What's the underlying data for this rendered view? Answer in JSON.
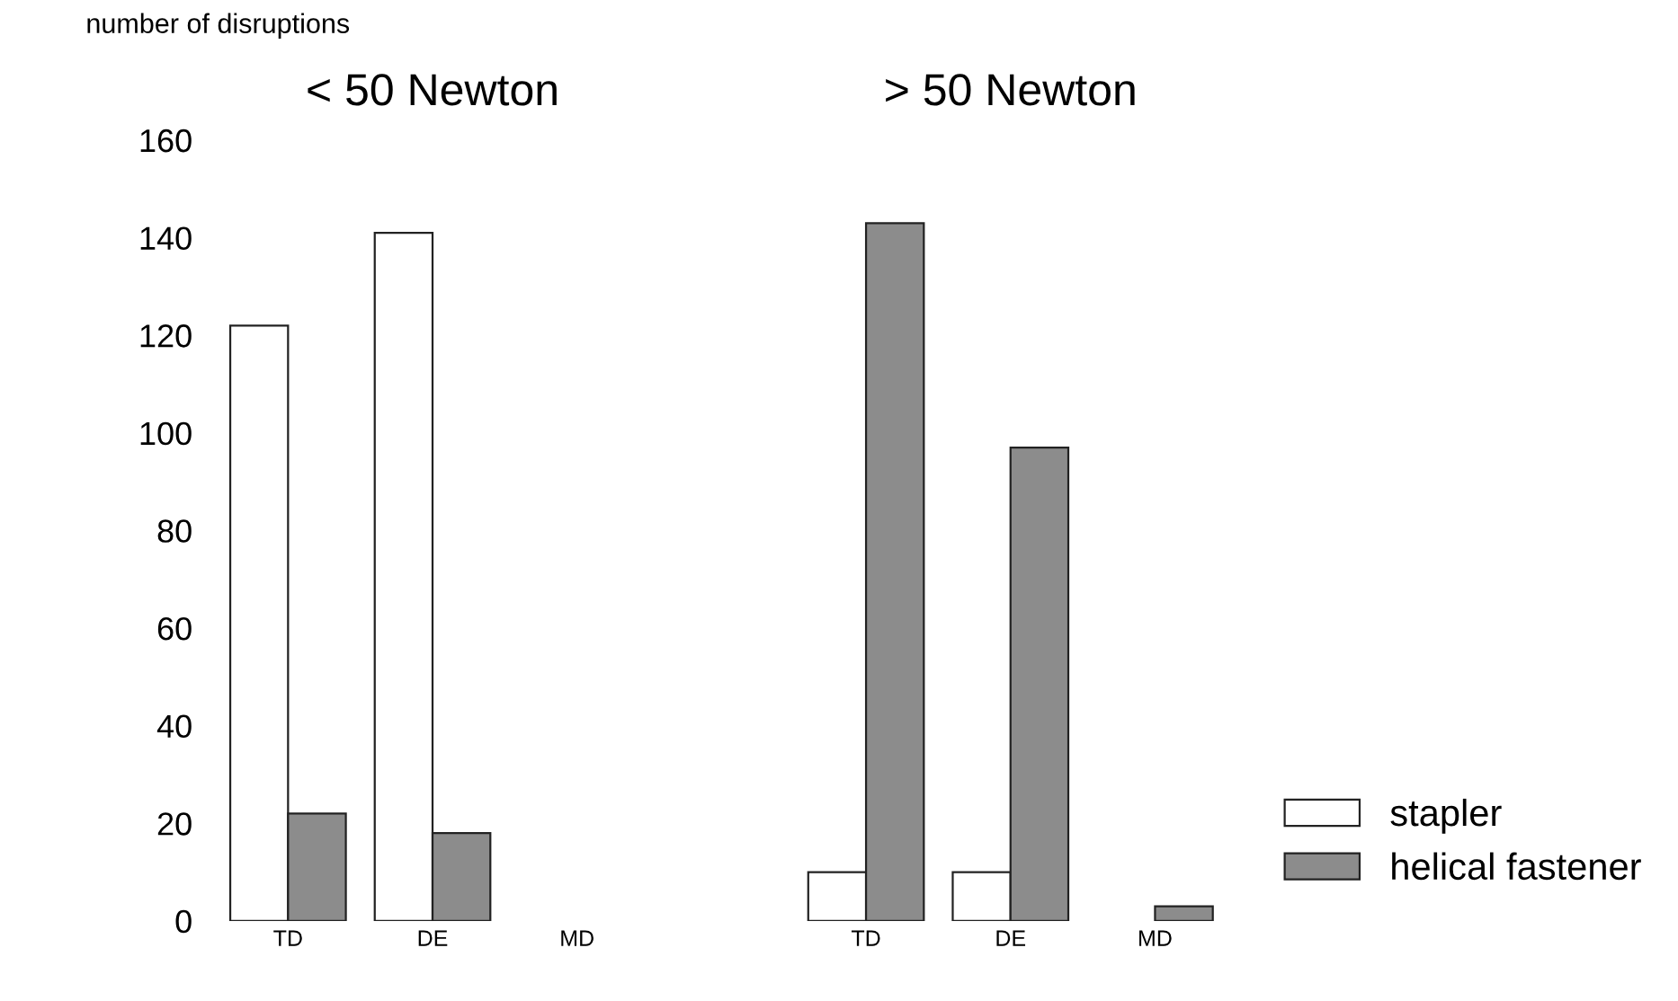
{
  "chart_data": [
    {
      "type": "bar",
      "title": "< 50 Newton",
      "ylabel": "number of disruptions",
      "categories": [
        "TD",
        "DE",
        "MD"
      ],
      "ylim": [
        0,
        160
      ],
      "yticks": [
        0,
        20,
        40,
        60,
        80,
        100,
        120,
        140,
        160
      ],
      "grid": false,
      "series": [
        {
          "color": "#ffffff",
          "values": [
            122,
            141,
            null
          ]
        },
        {
          "color": "#8c8c8c",
          "values": [
            22,
            18,
            null
          ]
        }
      ]
    },
    {
      "type": "bar",
      "title": "> 50 Newton",
      "categories": [
        "TD",
        "DE",
        "MD"
      ],
      "ylim": [
        0,
        160
      ],
      "yticks": [
        0,
        20,
        40,
        60,
        80,
        100,
        120,
        140,
        160
      ],
      "grid": false,
      "tick_labels": "x",
      "legend": "right",
      "series": [
        {
          "name": "stapler",
          "color": "#ffffff",
          "values": [
            10,
            10,
            null
          ]
        },
        {
          "name": "helical fastener",
          "color": "#8c8c8c",
          "values": [
            143,
            97,
            3
          ]
        }
      ]
    }
  ]
}
